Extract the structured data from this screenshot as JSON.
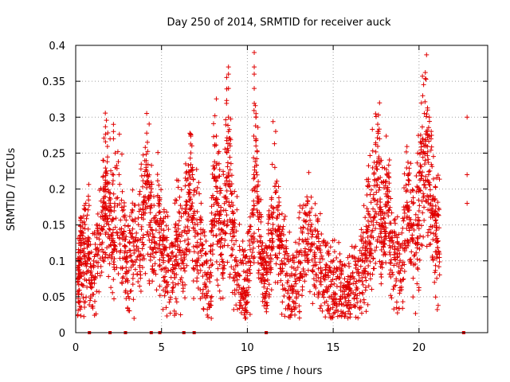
{
  "chart_data": {
    "type": "scatter",
    "title": "Day 250 of 2014, SRMTID for receiver auck",
    "xlabel": "GPS time / hours",
    "ylabel": "SRMTID / TECUs",
    "xlim": [
      0,
      24
    ],
    "ylim": [
      0,
      0.4
    ],
    "xticks": [
      0,
      5,
      10,
      15,
      20
    ],
    "xtick_labels": [
      "0",
      "5",
      "10",
      "15",
      "20"
    ],
    "yticks": [
      0,
      0.05,
      0.1,
      0.15,
      0.2,
      0.25,
      0.3,
      0.35,
      0.4
    ],
    "ytick_labels": [
      "0",
      "0.05",
      "0.1",
      "0.15",
      "0.2",
      "0.25",
      "0.3",
      "0.35",
      "0.4"
    ],
    "grid": true,
    "marker": "+",
    "series_color": "#e00000",
    "data_extent_hours": [
      0,
      21.3
    ],
    "baseline_band": {
      "points": [
        [
          0.1,
          0.06
        ],
        [
          0.2,
          0.09
        ],
        [
          0.3,
          0.12
        ],
        [
          0.5,
          0.1
        ],
        [
          0.7,
          0.13
        ],
        [
          0.9,
          0.08
        ],
        [
          1.2,
          0.1
        ],
        [
          1.5,
          0.15
        ],
        [
          1.7,
          0.19
        ],
        [
          1.8,
          0.21
        ],
        [
          2.0,
          0.16
        ],
        [
          2.2,
          0.12
        ],
        [
          2.5,
          0.17
        ],
        [
          2.8,
          0.13
        ],
        [
          3.0,
          0.09
        ],
        [
          3.3,
          0.14
        ],
        [
          3.6,
          0.11
        ],
        [
          3.9,
          0.16
        ],
        [
          4.1,
          0.21
        ],
        [
          4.3,
          0.18
        ],
        [
          4.5,
          0.13
        ],
        [
          4.8,
          0.16
        ],
        [
          5.0,
          0.12
        ],
        [
          5.2,
          0.09
        ],
        [
          5.5,
          0.08
        ],
        [
          5.8,
          0.11
        ],
        [
          6.0,
          0.13
        ],
        [
          6.3,
          0.1
        ],
        [
          6.5,
          0.18
        ],
        [
          6.7,
          0.21
        ],
        [
          6.9,
          0.14
        ],
        [
          7.2,
          0.12
        ],
        [
          7.5,
          0.1
        ],
        [
          7.8,
          0.06
        ],
        [
          8.0,
          0.17
        ],
        [
          8.2,
          0.2
        ],
        [
          8.4,
          0.15
        ],
        [
          8.6,
          0.13
        ],
        [
          8.8,
          0.24
        ],
        [
          9.0,
          0.19
        ],
        [
          9.2,
          0.14
        ],
        [
          9.5,
          0.09
        ],
        [
          9.8,
          0.07
        ],
        [
          10.0,
          0.06
        ],
        [
          10.3,
          0.16
        ],
        [
          10.5,
          0.24
        ],
        [
          10.7,
          0.12
        ],
        [
          10.9,
          0.09
        ],
        [
          11.1,
          0.06
        ],
        [
          11.3,
          0.12
        ],
        [
          11.5,
          0.19
        ],
        [
          11.8,
          0.14
        ],
        [
          12.0,
          0.1
        ],
        [
          12.3,
          0.08
        ],
        [
          12.6,
          0.06
        ],
        [
          12.9,
          0.09
        ],
        [
          13.2,
          0.11
        ],
        [
          13.5,
          0.13
        ],
        [
          13.8,
          0.12
        ],
        [
          14.1,
          0.1
        ],
        [
          14.4,
          0.08
        ],
        [
          14.7,
          0.07
        ],
        [
          15.0,
          0.06
        ],
        [
          15.3,
          0.07
        ],
        [
          15.6,
          0.05
        ],
        [
          15.9,
          0.06
        ],
        [
          16.2,
          0.08
        ],
        [
          16.5,
          0.07
        ],
        [
          16.8,
          0.1
        ],
        [
          17.0,
          0.13
        ],
        [
          17.2,
          0.15
        ],
        [
          17.4,
          0.18
        ],
        [
          17.6,
          0.24
        ],
        [
          17.8,
          0.14
        ],
        [
          18.0,
          0.16
        ],
        [
          18.2,
          0.18
        ],
        [
          18.4,
          0.12
        ],
        [
          18.7,
          0.1
        ],
        [
          19.0,
          0.09
        ],
        [
          19.3,
          0.18
        ],
        [
          19.5,
          0.15
        ],
        [
          19.8,
          0.11
        ],
        [
          20.0,
          0.2
        ],
        [
          20.2,
          0.23
        ],
        [
          20.4,
          0.26
        ],
        [
          20.6,
          0.2
        ],
        [
          20.8,
          0.17
        ],
        [
          21.0,
          0.14
        ],
        [
          21.2,
          0.12
        ]
      ],
      "points_per_anchor": 34
    },
    "outliers": [
      [
        2.2,
        0.29
      ],
      [
        2.2,
        0.28
      ],
      [
        2.2,
        0.27
      ],
      [
        2.3,
        0.25
      ],
      [
        2.3,
        0.23
      ],
      [
        4.1,
        0.23
      ],
      [
        4.2,
        0.22
      ],
      [
        6.8,
        0.23
      ],
      [
        6.8,
        0.22
      ],
      [
        8.1,
        0.26
      ],
      [
        8.3,
        0.25
      ],
      [
        8.9,
        0.37
      ],
      [
        8.9,
        0.36
      ],
      [
        8.9,
        0.34
      ],
      [
        8.9,
        0.3
      ],
      [
        8.9,
        0.28
      ],
      [
        9.0,
        0.26
      ],
      [
        10.4,
        0.39
      ],
      [
        10.4,
        0.37
      ],
      [
        10.4,
        0.36
      ],
      [
        10.4,
        0.34
      ],
      [
        10.5,
        0.3
      ],
      [
        10.5,
        0.27
      ],
      [
        10.5,
        0.26
      ],
      [
        11.6,
        0.23
      ],
      [
        17.7,
        0.32
      ],
      [
        17.6,
        0.28
      ],
      [
        17.7,
        0.27
      ],
      [
        17.8,
        0.24
      ],
      [
        20.2,
        0.27
      ],
      [
        20.3,
        0.26
      ],
      [
        20.5,
        0.31
      ],
      [
        20.6,
        0.3
      ],
      [
        20.7,
        0.27
      ],
      [
        22.8,
        0.3
      ],
      [
        22.8,
        0.22
      ],
      [
        22.8,
        0.18
      ],
      [
        3.4,
        0.02
      ],
      [
        7.9,
        0.02
      ]
    ],
    "zero_markers": [
      0.8,
      2.0,
      2.9,
      4.4,
      4.9,
      6.3,
      6.9,
      11.1,
      22.6
    ]
  }
}
